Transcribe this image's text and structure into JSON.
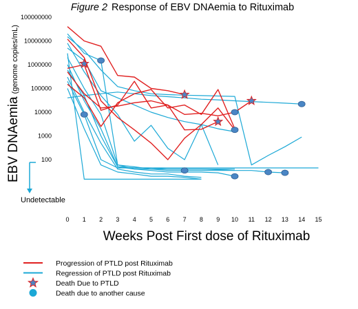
{
  "chart_data": {
    "type": "line",
    "title_prefix": "Figure 2",
    "title": "Response of EBV DNAemia to Rituximab",
    "xlabel": "Weeks Post First dose of Rituximab",
    "ylabel": "EBV DNAemia",
    "ylabel_units": "(genome copies/mL)",
    "x_ticks": [
      0,
      1,
      2,
      3,
      4,
      5,
      6,
      7,
      8,
      9,
      10,
      11,
      12,
      13,
      14,
      15
    ],
    "y_ticks": [
      "100000000",
      "10000000",
      "1000000",
      "100000",
      "10000",
      "1000",
      "100"
    ],
    "undetectable_label": "Undetectable",
    "xlim": [
      0,
      15
    ],
    "y_scale": "log",
    "grid": false,
    "colors": {
      "progression": "#e02020",
      "regression": "#1ba8d6",
      "marker_fill": "#4a86c5",
      "marker_edge": "#2f5f93"
    },
    "series": [
      {
        "name": "Progression of PTLD post Rituximab",
        "color": "#e02020",
        "lines": [
          {
            "x": [
              0,
              1,
              2,
              3,
              4,
              5,
              6,
              7
            ],
            "y": [
              40000000,
              10000000,
              6000000,
              350000,
              300000,
              100000,
              80000,
              55000
            ]
          },
          {
            "x": [
              0,
              1,
              2,
              3,
              4,
              5,
              6,
              7,
              8,
              9,
              10
            ],
            "y": [
              12000000,
              2000000,
              30000,
              6000,
              1800,
              500,
              100,
              800,
              3000,
              15000,
              1800
            ]
          },
          {
            "x": [
              0,
              1,
              2,
              3,
              4,
              5,
              6,
              7,
              8,
              9
            ],
            "y": [
              700000,
              1000000,
              12000,
              20000,
              200000,
              15000,
              20000,
              1800,
              1900,
              4000
            ]
          },
          {
            "x": [
              0,
              1,
              2,
              3,
              4,
              5,
              6,
              7,
              8,
              9,
              10
            ],
            "y": [
              150000,
              40000,
              2500,
              25000,
              60000,
              90000,
              15000,
              20000,
              8000,
              90000,
              2000
            ]
          },
          {
            "x": [
              0,
              1,
              2,
              3,
              4,
              5,
              6,
              7,
              8,
              9,
              10,
              11
            ],
            "y": [
              500000,
              60000,
              15000,
              18000,
              25000,
              30000,
              20000,
              8000,
              9000,
              7000,
              10000,
              30000
            ]
          }
        ]
      },
      {
        "name": "Regression of PTLD post Rituximab",
        "color": "#1ba8d6",
        "lines": [
          {
            "x": [
              0,
              1,
              2,
              3,
              4,
              5,
              6,
              7,
              8,
              9,
              10,
              11,
              12,
              13,
              14
            ],
            "y": [
              40000,
              50000,
              60000,
              70000,
              60000,
              50000,
              45000,
              40000,
              35000,
              33000,
              30000,
              28000,
              26000,
              24000,
              22000
            ]
          },
          {
            "x": [
              0,
              1,
              2,
              3,
              4,
              5,
              6,
              7,
              8,
              9,
              10,
              11,
              12,
              13,
              14
            ],
            "y": [
              15000000,
              4000000,
              600000,
              120000,
              80000,
              60000,
              55000,
              52000,
              50000,
              48000,
              46000,
              60,
              150,
              350,
              900
            ]
          },
          {
            "x": [
              0,
              1,
              2,
              3,
              4,
              5,
              6,
              7,
              8,
              9,
              10
            ],
            "y": [
              5000000,
              1500000,
              80000,
              40000,
              20000,
              10000,
              6000,
              4000,
              3000,
              2000,
              1500
            ]
          },
          {
            "x": [
              0,
              1,
              2,
              3,
              4,
              5,
              6,
              7,
              8,
              9,
              10
            ],
            "y": [
              20000000,
              3000000,
              1500000,
              60,
              40,
              40,
              40,
              40,
              40,
              40,
              40
            ]
          },
          {
            "x": [
              0,
              1,
              2,
              3,
              4,
              5,
              6,
              7,
              8,
              9
            ],
            "y": [
              8000000,
              500000,
              50000,
              8000,
              600,
              2800,
              300,
              100,
              3000,
              60
            ]
          },
          {
            "x": [
              0,
              1,
              2,
              3,
              4,
              5,
              6,
              7,
              8,
              9,
              10,
              11,
              12,
              13
            ],
            "y": [
              2000000,
              100000,
              8000,
              60,
              50,
              40,
              35,
              35,
              35,
              35,
              35,
              35,
              30,
              28
            ]
          },
          {
            "x": [
              0,
              1,
              2,
              3,
              4,
              5,
              6,
              7,
              8,
              9,
              10
            ],
            "y": [
              1000000,
              30000,
              2000,
              50,
              40,
              35,
              30,
              30,
              30,
              28,
              20
            ]
          },
          {
            "x": [
              0,
              1,
              2,
              3,
              4,
              5,
              6,
              7,
              8
            ],
            "y": [
              300000,
              10000,
              500,
              40,
              30,
              25,
              25,
              20,
              18
            ]
          },
          {
            "x": [
              0,
              1,
              2,
              3,
              4,
              5,
              6,
              7,
              8
            ],
            "y": [
              100000,
              2000,
              60,
              30,
              25,
              20,
              20,
              18,
              15
            ]
          },
          {
            "x": [
              0,
              1,
              2,
              3,
              4,
              5,
              6,
              7,
              8
            ],
            "y": [
              3000000,
              15,
              15,
              15,
              15,
              15,
              15,
              15,
              15
            ]
          },
          {
            "x": [
              0,
              1,
              2,
              3,
              4,
              5,
              6,
              7,
              8,
              9,
              10,
              11,
              12,
              13,
              14,
              15
            ],
            "y": [
              200000,
              8000,
              100,
              45,
              45,
              45,
              45,
              45,
              45,
              45,
              45,
              45,
              45,
              45,
              45,
              45
            ]
          },
          {
            "x": [
              0,
              1,
              2,
              3,
              4,
              5,
              6,
              7,
              8,
              9,
              10
            ],
            "y": [
              600000,
              50000,
              1000,
              50,
              45,
              45,
              40,
              40,
              40,
              38,
              35
            ]
          }
        ]
      }
    ],
    "markers_ptld": [
      {
        "x": 1,
        "y": 1100000
      },
      {
        "x": 7,
        "y": 55000
      },
      {
        "x": 9,
        "y": 4000
      },
      {
        "x": 11,
        "y": 30000
      }
    ],
    "markers_other": [
      {
        "x": 1,
        "y": 8000
      },
      {
        "x": 2,
        "y": 1500000
      },
      {
        "x": 10,
        "y": 10000
      },
      {
        "x": 10,
        "y": 1800
      },
      {
        "x": 14,
        "y": 22000
      },
      {
        "x": 7,
        "y": 35
      },
      {
        "x": 12,
        "y": 30
      },
      {
        "x": 13,
        "y": 28
      },
      {
        "x": 10,
        "y": 20
      }
    ],
    "legend": [
      {
        "type": "line",
        "color": "#e02020",
        "label": "Progression of PTLD post Rituximab"
      },
      {
        "type": "line",
        "color": "#1ba8d6",
        "label": "Regression of PTLD post Rituximab"
      },
      {
        "type": "star",
        "label": "Death Due to PTLD"
      },
      {
        "type": "circle",
        "label": "Death due to another cause"
      }
    ]
  }
}
